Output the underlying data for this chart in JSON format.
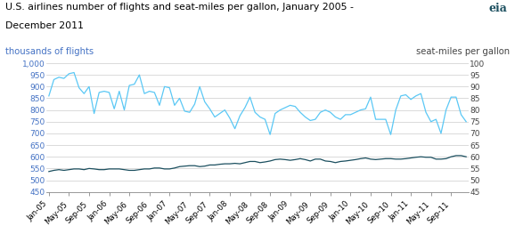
{
  "title_line1": "U.S. airlines number of flights and seat-miles per gallon, January 2005 -",
  "title_line2": "December 2011",
  "left_label": "thousands of flights",
  "right_label": "seat-miles per gallon",
  "left_ylim": [
    450,
    1000
  ],
  "right_ylim": [
    45,
    100
  ],
  "left_yticks": [
    450,
    500,
    550,
    600,
    650,
    700,
    750,
    800,
    850,
    900,
    950,
    1000
  ],
  "right_yticks": [
    45,
    50,
    55,
    60,
    65,
    70,
    75,
    80,
    85,
    90,
    95,
    100
  ],
  "flights_color": "#5BC8F5",
  "smpg_color": "#1B4F5F",
  "background_color": "#FFFFFF",
  "grid_color": "#CCCCCC",
  "left_tick_color": "#4472C4",
  "right_tick_color": "#444444",
  "xtick_labels": [
    "Jan-05",
    "May-05",
    "Sep-05",
    "Jan-06",
    "May-06",
    "Sep-06",
    "Jan-07",
    "May-07",
    "Sep-07",
    "Jan-08",
    "May-08",
    "Sep-08",
    "Jan-09",
    "May-09",
    "Sep-09",
    "Jan-10",
    "May-10",
    "Sep-10",
    "Jan-11",
    "May-11",
    "Sep-11"
  ],
  "flights": [
    860,
    930,
    940,
    935,
    955,
    960,
    895,
    870,
    900,
    785,
    875,
    880,
    875,
    805,
    880,
    800,
    905,
    910,
    950,
    870,
    880,
    875,
    820,
    900,
    895,
    820,
    850,
    795,
    790,
    825,
    900,
    835,
    805,
    770,
    785,
    800,
    765,
    720,
    775,
    810,
    855,
    790,
    770,
    760,
    695,
    785,
    800,
    810,
    820,
    815,
    790,
    770,
    755,
    760,
    790,
    800,
    790,
    770,
    760,
    780,
    780,
    790,
    800,
    805,
    855,
    760,
    760,
    760,
    695,
    800,
    860,
    865,
    845,
    860,
    870,
    790,
    750,
    760,
    700,
    800,
    855,
    855,
    780,
    750
  ],
  "smpg": [
    53.7,
    54.2,
    54.5,
    54.2,
    54.5,
    54.8,
    54.8,
    54.5,
    55.0,
    54.8,
    54.5,
    54.5,
    54.8,
    54.8,
    54.8,
    54.5,
    54.2,
    54.2,
    54.5,
    54.8,
    54.8,
    55.2,
    55.2,
    54.8,
    54.8,
    55.2,
    55.8,
    56.0,
    56.2,
    56.2,
    55.8,
    56.0,
    56.5,
    56.5,
    56.8,
    57.0,
    57.0,
    57.2,
    57.0,
    57.5,
    58.0,
    58.0,
    57.5,
    57.8,
    58.2,
    58.8,
    59.0,
    58.8,
    58.5,
    58.8,
    59.2,
    58.8,
    58.2,
    59.0,
    59.0,
    58.2,
    58.0,
    57.5,
    58.0,
    58.2,
    58.5,
    58.8,
    59.2,
    59.5,
    59.0,
    58.8,
    59.0,
    59.2,
    59.2,
    59.0,
    59.0,
    59.2,
    59.5,
    59.8,
    60.0,
    59.8,
    59.8,
    59.0,
    59.0,
    59.2,
    60.0,
    60.5,
    60.5,
    60.0
  ]
}
